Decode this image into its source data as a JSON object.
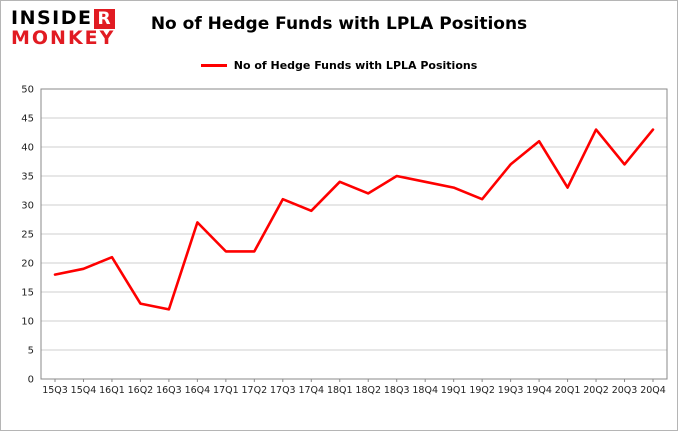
{
  "header": {
    "logo_word1_main": "INSIDE",
    "logo_word1_accent": "R",
    "logo_word2": "MONKEY",
    "title": "No of Hedge Funds with LPLA Positions"
  },
  "legend": {
    "label": "No of Hedge Funds with LPLA Positions",
    "color": "#fe0000"
  },
  "chart_data": {
    "type": "line",
    "title": "No of Hedge Funds with LPLA Positions",
    "categories": [
      "15Q3",
      "15Q4",
      "16Q1",
      "16Q2",
      "16Q3",
      "16Q4",
      "17Q1",
      "17Q2",
      "17Q3",
      "17Q4",
      "18Q1",
      "18Q2",
      "18Q3",
      "18Q4",
      "19Q1",
      "19Q2",
      "19Q3",
      "19Q4",
      "20Q1",
      "20Q2",
      "20Q3",
      "20Q4"
    ],
    "series": [
      {
        "name": "No of Hedge Funds with LPLA Positions",
        "color": "#fe0000",
        "values": [
          18,
          19,
          21,
          13,
          12,
          27,
          22,
          22,
          31,
          29,
          34,
          32,
          35,
          34,
          33,
          31,
          37,
          41,
          33,
          43,
          37,
          43
        ]
      }
    ],
    "xlabel": "",
    "ylabel": "",
    "ylim": [
      0,
      50
    ],
    "ytick_step": 5,
    "grid": true,
    "grid_color": "#cfcfcf",
    "axis_color": "#8a8a8a",
    "tick_label_color": "#222222",
    "legend_position": "top"
  }
}
